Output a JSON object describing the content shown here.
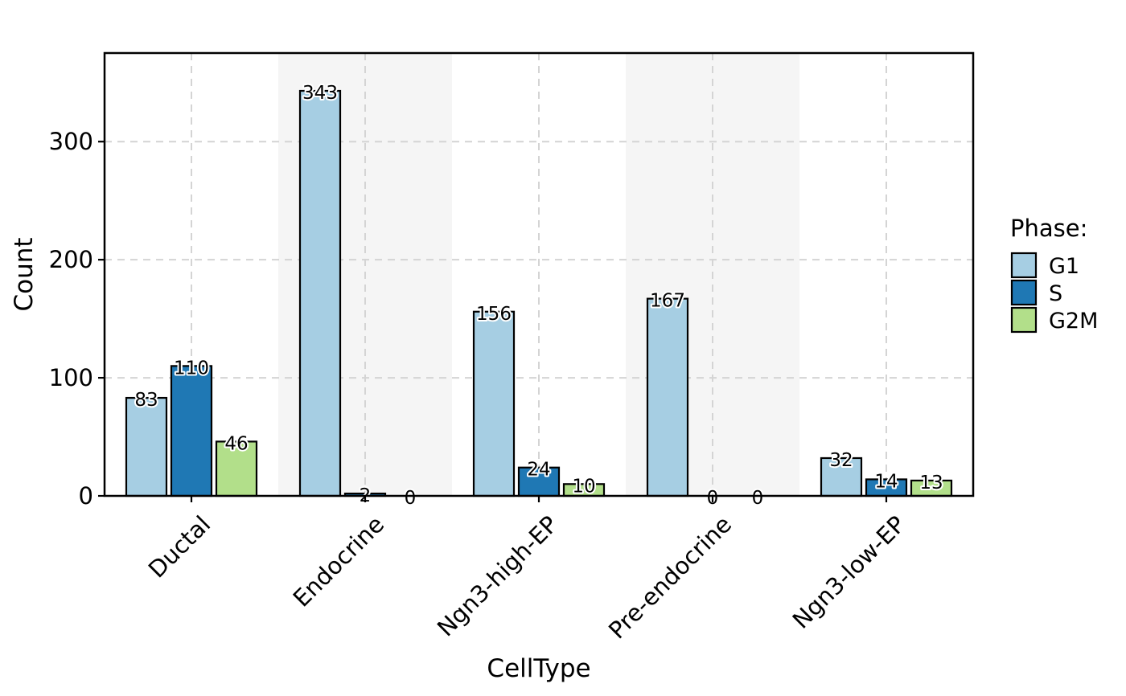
{
  "chart_data": {
    "type": "bar",
    "title": "",
    "xlabel": "CellType",
    "ylabel": "Count",
    "categories": [
      "Ductal",
      "Endocrine",
      "Ngn3-high-EP",
      "Pre-endocrine",
      "Ngn3-low-EP"
    ],
    "series": [
      {
        "name": "G1",
        "color": "#a6cee3",
        "values": [
          83,
          343,
          156,
          167,
          32
        ]
      },
      {
        "name": "S",
        "color": "#1f78b4",
        "values": [
          110,
          2,
          24,
          0,
          14
        ]
      },
      {
        "name": "G2M",
        "color": "#b2df8a",
        "values": [
          46,
          0,
          10,
          0,
          13
        ]
      }
    ],
    "ylim": [
      0,
      375
    ],
    "yticks": [
      0,
      100,
      200,
      300
    ],
    "grid": true,
    "alternating_band_color": "#f5f5f5",
    "legend": {
      "title": "Phase:",
      "placement": "right"
    }
  }
}
